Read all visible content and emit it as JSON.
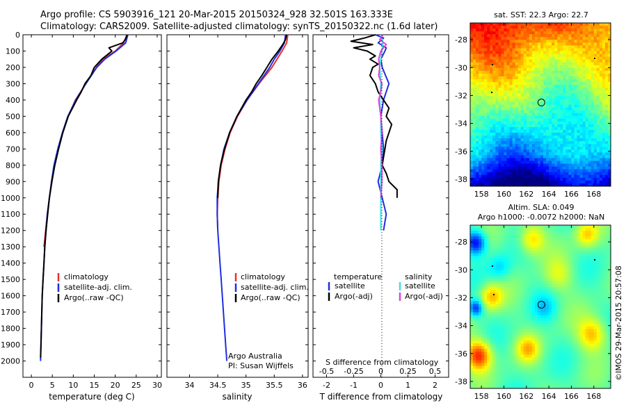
{
  "title": {
    "line1": "Argo profile: CS 5903916_121 20-Mar-2015 20150324_928 32.501S 163.333E",
    "line2": "Climatology: CARS2009. Satellite-adjusted climatology: synTS_20150322.nc (1.6d later)"
  },
  "colors": {
    "climatology": "#e8302a",
    "satellite": "#1c2ee0",
    "argo": "#000000",
    "cyan": "#3fe0e0",
    "magenta": "#e040e0"
  },
  "chart_data": [
    {
      "type": "line",
      "id": "temperature",
      "xlabel": "temperature (deg C)",
      "ylabel": "",
      "xlim": [
        -2,
        31
      ],
      "ylim": [
        2100,
        0
      ],
      "xticks": [
        0,
        5,
        10,
        15,
        20,
        25,
        30
      ],
      "yticks": [
        0,
        100,
        200,
        300,
        400,
        500,
        600,
        700,
        800,
        900,
        1000,
        1100,
        1200,
        1300,
        1400,
        1500,
        1600,
        1700,
        1800,
        1900,
        2000
      ],
      "legend": [
        "climatology",
        "satellite-adj. clim.",
        "Argo(..raw -QC)"
      ],
      "series": [
        {
          "name": "climatology",
          "color_key": "climatology",
          "depth": [
            0,
            50,
            100,
            150,
            200,
            300,
            400,
            500,
            600,
            700,
            800,
            900,
            1000,
            1100,
            1200,
            1300
          ],
          "values": [
            22.8,
            22.0,
            20.0,
            17.0,
            15.5,
            13.0,
            10.5,
            8.8,
            7.5,
            6.4,
            5.5,
            4.9,
            4.3,
            3.8,
            3.4,
            3.0
          ]
        },
        {
          "name": "satellite-adj. clim.",
          "color_key": "satellite",
          "depth": [
            0,
            50,
            100,
            150,
            200,
            300,
            400,
            500,
            600,
            700,
            800,
            900,
            1000,
            1100,
            1200,
            1300,
            1400,
            1500,
            1600,
            1700,
            1800,
            1900,
            2000
          ],
          "values": [
            23.0,
            22.5,
            20.2,
            17.5,
            15.6,
            13.0,
            10.6,
            8.7,
            7.4,
            6.3,
            5.4,
            4.8,
            4.3,
            3.8,
            3.5,
            3.2,
            3.0,
            2.8,
            2.6,
            2.5,
            2.4,
            2.3,
            2.2
          ]
        },
        {
          "name": "Argo(..raw -QC)",
          "color_key": "argo",
          "depth": [
            0,
            10,
            30,
            50,
            80,
            100,
            150,
            200,
            250,
            300,
            350,
            400,
            500,
            600,
            700,
            800,
            900,
            1000,
            1100,
            1200,
            1300,
            1400,
            1500,
            1600,
            1700,
            1800,
            1900,
            1980
          ],
          "values": [
            22.8,
            22.7,
            22.4,
            21.8,
            18.5,
            19.2,
            16.8,
            15.0,
            14.2,
            12.8,
            11.9,
            10.8,
            8.8,
            7.5,
            6.5,
            5.6,
            4.9,
            4.3,
            3.9,
            3.5,
            3.2,
            3.0,
            2.8,
            2.6,
            2.5,
            2.4,
            2.3,
            2.2
          ]
        }
      ]
    },
    {
      "type": "line",
      "id": "salinity",
      "xlabel": "salinity",
      "xlim": [
        33.6,
        36.1
      ],
      "ylim": [
        2100,
        0
      ],
      "xticks": [
        34,
        34.5,
        35,
        35.5,
        36
      ],
      "legend": [
        "climatology",
        "satellite-adj. clim.",
        "Argo(..raw -QC)"
      ],
      "annotation": [
        "Argo Australia",
        "PI: Susan Wijffels"
      ],
      "series": [
        {
          "name": "climatology",
          "color_key": "climatology",
          "depth": [
            0,
            50,
            100,
            150,
            200,
            300,
            400,
            500,
            600,
            700,
            800,
            900,
            1000,
            1100,
            1200
          ],
          "values": [
            35.74,
            35.72,
            35.64,
            35.55,
            35.46,
            35.23,
            35.02,
            34.85,
            34.72,
            34.63,
            34.56,
            34.52,
            34.5,
            34.49,
            34.5
          ]
        },
        {
          "name": "satellite-adj. clim.",
          "color_key": "satellite",
          "depth": [
            0,
            50,
            100,
            150,
            200,
            300,
            400,
            500,
            600,
            700,
            800,
            900,
            1000,
            1100,
            1200,
            1300,
            1400,
            1500,
            1600,
            1700,
            1800,
            1900,
            2000
          ],
          "values": [
            35.7,
            35.68,
            35.6,
            35.5,
            35.42,
            35.22,
            35.02,
            34.84,
            34.71,
            34.61,
            34.55,
            34.51,
            34.49,
            34.49,
            34.5,
            34.52,
            34.54,
            34.56,
            34.58,
            34.6,
            34.62,
            34.64,
            34.66
          ]
        },
        {
          "name": "Argo(..raw -QC)",
          "color_key": "argo",
          "depth": [
            0,
            30,
            60,
            100,
            150,
            200,
            250,
            300,
            350,
            400,
            500,
            600,
            700,
            800,
            900,
            1000
          ],
          "values": [
            35.72,
            35.7,
            35.65,
            35.57,
            35.46,
            35.37,
            35.28,
            35.18,
            35.1,
            35.0,
            34.84,
            34.71,
            34.62,
            34.55,
            34.51,
            34.5
          ]
        }
      ]
    },
    {
      "type": "line",
      "id": "differences",
      "xlabel_bottom": "T difference from climatology",
      "xlabel_top": "S difference from climatology",
      "xlim": [
        -2.5,
        2.5
      ],
      "ylim": [
        2100,
        0
      ],
      "xticks_bottom": [
        -2,
        -1,
        0,
        1,
        2
      ],
      "xticks_top": [
        {
          "value": -0.5,
          "label": "-0.5"
        },
        {
          "value": -0.25,
          "label": "-0.25"
        },
        {
          "value": 0,
          "label": "0"
        },
        {
          "value": 0.25,
          "label": "0.25"
        },
        {
          "value": 0.5,
          "label": "0.5"
        }
      ],
      "s_scale": 4,
      "legend": {
        "temperature_heading": "temperature",
        "salinity_heading": "salinity",
        "entries": [
          "satellite",
          "Argo(-adj)",
          "satellite",
          "Argo(-adj)"
        ]
      },
      "series": [
        {
          "name": "T satellite",
          "color_key": "satellite",
          "depth": [
            0,
            20,
            50,
            80,
            100,
            150,
            200,
            300,
            400,
            500,
            600,
            700,
            800,
            900,
            1000,
            1100,
            1200
          ],
          "values": [
            -0.2,
            0.1,
            -0.1,
            0.2,
            0.15,
            0.0,
            0.05,
            0.3,
            0.1,
            0.0,
            0.05,
            0.1,
            0.05,
            -0.1,
            0.05,
            0.2,
            0.1
          ]
        },
        {
          "name": "T Argo(-adj)",
          "color_key": "argo",
          "depth": [
            0,
            20,
            40,
            60,
            80,
            100,
            130,
            150,
            180,
            200,
            250,
            300,
            350,
            400,
            450,
            500,
            550,
            600,
            650,
            700,
            750,
            800,
            850,
            900,
            950,
            1000
          ],
          "values": [
            -0.2,
            -0.6,
            -1.1,
            -0.3,
            -1.0,
            -0.5,
            -0.2,
            -0.4,
            -0.1,
            -0.3,
            -0.4,
            -0.2,
            -0.1,
            0.1,
            0.3,
            0.2,
            0.4,
            0.3,
            0.2,
            0.15,
            0.1,
            0.05,
            0.2,
            0.3,
            0.6,
            0.6
          ]
        },
        {
          "name": "S satellite",
          "color_key": "cyan",
          "depth": [
            0,
            50,
            100,
            200,
            300,
            400,
            500,
            600,
            700,
            800,
            900,
            1000,
            1100,
            1200
          ],
          "values": [
            0.0,
            0.02,
            0.01,
            -0.01,
            0.0,
            -0.01,
            0.0,
            0.0,
            0.01,
            0.0,
            0.0,
            0.0,
            0.0,
            0.0
          ]
        },
        {
          "name": "S Argo(-adj)",
          "color_key": "magenta",
          "depth": [
            0,
            30,
            60,
            100,
            150,
            200,
            250,
            300,
            350,
            400,
            500,
            600,
            700,
            800,
            900,
            1000
          ],
          "values": [
            0.02,
            -0.01,
            0.05,
            0.0,
            -0.02,
            -0.01,
            -0.02,
            0.01,
            0.0,
            -0.02,
            0.0,
            0.01,
            0.0,
            0.01,
            0.01,
            0.0
          ]
        }
      ]
    },
    {
      "type": "heatmap",
      "id": "sst-map",
      "title": "sat. SST: 22.3 Argo: 22.7",
      "xlim": [
        157,
        169.5
      ],
      "ylim": [
        -38.5,
        -26.8
      ],
      "xticks": [
        158,
        160,
        162,
        164,
        166,
        168
      ],
      "yticks": [
        -28,
        -30,
        -32,
        -34,
        -36,
        -38
      ],
      "argo_position": {
        "lon": 163.333,
        "lat": -32.501
      }
    },
    {
      "type": "heatmap",
      "id": "sla-map",
      "title": [
        "Altim. SLA: 0.049",
        "Argo h1000: -0.0072 h2000: NaN"
      ],
      "xlim": [
        157,
        169.5
      ],
      "ylim": [
        -38.5,
        -26.8
      ],
      "xticks": [
        158,
        160,
        162,
        164,
        166,
        168
      ],
      "yticks": [
        -28,
        -30,
        -32,
        -34,
        -36,
        -38
      ],
      "argo_position": {
        "lon": 163.333,
        "lat": -32.501
      }
    }
  ],
  "footer_label": "©IMOS 29-Mar-2015 20:57:08"
}
